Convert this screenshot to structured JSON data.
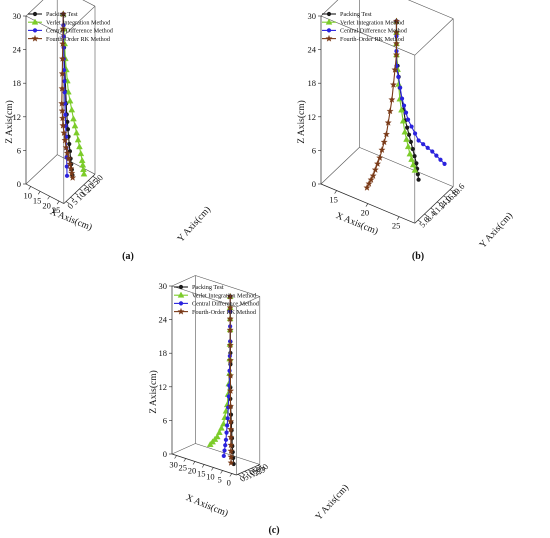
{
  "figure": {
    "legend_entries": [
      {
        "name": "Packing Test",
        "color": "#1a1a1a",
        "marker": "circle"
      },
      {
        "name": "Verlet Integration Method",
        "color": "#7ccc2a",
        "marker": "triangle"
      },
      {
        "name": "Central Difference Method",
        "color": "#2a22dd",
        "marker": "circle"
      },
      {
        "name": "Fourth-Order RK Method",
        "color": "#7a3a18",
        "marker": "star"
      }
    ]
  },
  "chart_data": [
    {
      "type": "line",
      "panel": "a",
      "caption": "(a)",
      "xlabel": "X Axis(cm)",
      "ylabel": "Y Axis(cm)",
      "zlabel": "Z Axis(cm)",
      "x_ticks": [
        "10",
        "15",
        "20",
        "25"
      ],
      "y_ticks": [
        "0",
        "5",
        "10",
        "15",
        "20",
        "25",
        "30"
      ],
      "z_ticks": [
        "0",
        "6",
        "12",
        "18",
        "24",
        "30"
      ],
      "xlim": [
        10,
        25
      ],
      "ylim": [
        0,
        30
      ],
      "zlim": [
        0,
        30
      ],
      "legend_position": "top-left",
      "series": [
        {
          "name": "Packing Test",
          "x": [
            19.0,
            19.2,
            19.5,
            19.8,
            20.2,
            20.6,
            21.0
          ],
          "y": [
            14.0,
            14.3,
            14.8,
            15.4,
            16.2,
            17.2,
            18.0
          ],
          "z": [
            30.0,
            24.0,
            18.0,
            12.0,
            8.0,
            4.0,
            1.0
          ]
        },
        {
          "name": "Verlet Integration Method",
          "x": [
            19.0,
            19.5,
            20.2,
            21.2,
            22.0,
            22.6,
            22.9
          ],
          "y": [
            14.0,
            14.8,
            16.0,
            18.5,
            21.0,
            23.5,
            24.5
          ],
          "z": [
            30.0,
            22.0,
            16.0,
            11.0,
            7.0,
            3.0,
            0.5
          ]
        },
        {
          "name": "Central Difference Method",
          "x": [
            19.0,
            19.1,
            19.3,
            19.5,
            19.7,
            19.8
          ],
          "y": [
            14.0,
            14.1,
            14.4,
            14.8,
            15.4,
            15.7
          ],
          "z": [
            30.0,
            24.0,
            18.0,
            12.0,
            6.0,
            1.0
          ]
        },
        {
          "name": "Fourth-Order RK Method",
          "x": [
            19.0,
            18.8,
            18.6,
            18.8,
            19.5,
            20.4,
            21.0
          ],
          "y": [
            14.0,
            13.8,
            13.6,
            14.2,
            15.5,
            17.0,
            18.2
          ],
          "z": [
            30.0,
            22.0,
            14.0,
            10.0,
            6.0,
            3.0,
            0.5
          ]
        }
      ]
    },
    {
      "type": "line",
      "panel": "b",
      "caption": "(b)",
      "xlabel": "X Axis(cm)",
      "ylabel": "Y Axis(cm)",
      "zlabel": "Z Axis(cm)",
      "x_ticks": [
        "15",
        "20",
        "25"
      ],
      "y_ticks": [
        "5.6",
        "8.4",
        "11.2",
        "14.0",
        "16.8",
        "19.6"
      ],
      "z_ticks": [
        "0",
        "6",
        "12",
        "18",
        "24",
        "30"
      ],
      "xlim": [
        10,
        25
      ],
      "ylim": [
        4,
        20
      ],
      "zlim": [
        0,
        30
      ],
      "legend_position": "top-left",
      "series": [
        {
          "name": "Packing Test",
          "x": [
            19.0,
            19.0,
            19.3,
            19.8,
            20.3,
            20.8,
            21.0
          ],
          "y": [
            12.0,
            12.0,
            12.6,
            13.6,
            14.6,
            15.6,
            16.0
          ],
          "z": [
            30.0,
            24.0,
            18.0,
            12.0,
            8.0,
            4.0,
            1.0
          ]
        },
        {
          "name": "Verlet Integration Method",
          "x": [
            19.0,
            19.0,
            19.3,
            19.8,
            20.3,
            20.8
          ],
          "y": [
            12.0,
            12.0,
            12.6,
            13.4,
            14.2,
            15.0
          ],
          "z": [
            30.0,
            24.0,
            16.0,
            10.0,
            6.0,
            3.0
          ]
        },
        {
          "name": "Central Difference Method",
          "x": [
            19.0,
            19.0,
            19.5,
            20.0,
            21.0,
            22.5,
            24.0
          ],
          "y": [
            12.0,
            12.0,
            13.0,
            14.2,
            16.0,
            17.8,
            19.0
          ],
          "z": [
            30.0,
            22.0,
            16.0,
            12.0,
            8.0,
            6.0,
            4.0
          ]
        },
        {
          "name": "Fourth-Order RK Method",
          "x": [
            19.0,
            19.0,
            18.5,
            18.0,
            17.4,
            16.8,
            16.2
          ],
          "y": [
            12.0,
            12.0,
            11.4,
            10.4,
            9.2,
            8.0,
            7.0
          ],
          "z": [
            30.0,
            24.0,
            16.0,
            10.0,
            6.0,
            3.0,
            1.0
          ]
        }
      ]
    },
    {
      "type": "line",
      "panel": "c",
      "caption": "(c)",
      "xlabel": "X Axis(cm)",
      "ylabel": "Y Axis(cm)",
      "zlabel": "Z Axis(cm)",
      "x_ticks": [
        "30",
        "25",
        "20",
        "15",
        "10",
        "5",
        "0"
      ],
      "y_ticks": [
        "0",
        "5",
        "10",
        "15",
        "20",
        "25",
        "30"
      ],
      "z_ticks": [
        "0",
        "6",
        "12",
        "18",
        "24",
        "30"
      ],
      "xlim": [
        30,
        0
      ],
      "ylim": [
        30,
        0
      ],
      "zlim": [
        0,
        30
      ],
      "legend_position": "top-left",
      "series": [
        {
          "name": "Packing Test",
          "x": [
            8.0,
            7.8,
            7.5,
            7.0,
            6.0,
            5.0,
            4.0
          ],
          "y": [
            16.0,
            16.2,
            17.0,
            18.5,
            20.0,
            21.5,
            22.5
          ],
          "z": [
            30.0,
            24.0,
            18.0,
            12.0,
            8.0,
            4.0,
            1.0
          ]
        },
        {
          "name": "Verlet Integration Method",
          "x": [
            8.0,
            8.2,
            9.0,
            11.0,
            14.0,
            18.0,
            22.0
          ],
          "y": [
            16.0,
            15.5,
            14.0,
            11.5,
            8.0,
            5.0,
            3.0
          ],
          "z": [
            30.0,
            24.0,
            16.0,
            10.0,
            6.0,
            3.0,
            1.0
          ]
        },
        {
          "name": "Central Difference Method",
          "x": [
            8.0,
            8.0,
            8.6,
            9.5,
            10.5,
            11.5
          ],
          "y": [
            16.0,
            16.0,
            15.5,
            15.0,
            14.5,
            14.5
          ],
          "z": [
            30.0,
            22.0,
            14.0,
            8.0,
            4.0,
            1.0
          ]
        },
        {
          "name": "Fourth-Order RK Method",
          "x": [
            8.0,
            8.0,
            7.5,
            6.8,
            6.0,
            5.4
          ],
          "y": [
            16.0,
            16.0,
            17.0,
            18.8,
            20.5,
            22.0
          ],
          "z": [
            30.0,
            24.0,
            16.0,
            8.0,
            4.0,
            1.0
          ]
        }
      ]
    }
  ]
}
